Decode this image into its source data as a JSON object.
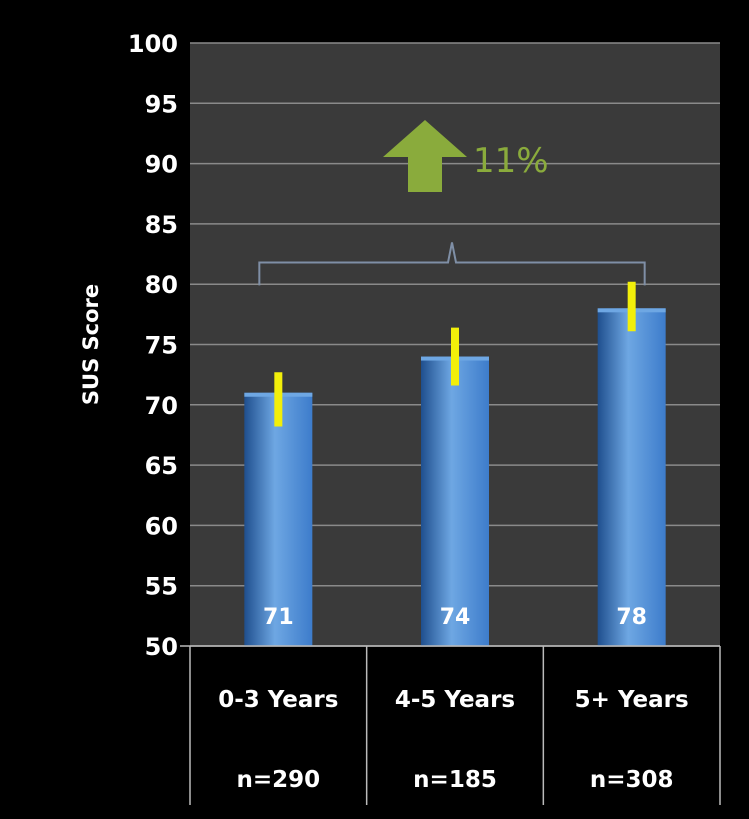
{
  "chart_data": {
    "type": "bar",
    "title": "",
    "ylabel": "SUS Score",
    "xlabel": "",
    "ylim": [
      50,
      100
    ],
    "yticks": [
      50,
      55,
      60,
      65,
      70,
      75,
      80,
      85,
      90,
      95,
      100
    ],
    "grid": true,
    "categories": [
      "0-3 Years",
      "4-5 Years",
      "5+ Years"
    ],
    "sample_sizes": [
      "n=290",
      "n=185",
      "n=308"
    ],
    "values": [
      71,
      74,
      78
    ],
    "error_bars": [
      {
        "low": 68.2,
        "high": 72.7
      },
      {
        "low": 71.6,
        "high": 76.4
      },
      {
        "low": 76.1,
        "high": 80.2
      }
    ],
    "annotation": {
      "text": "11%",
      "type": "up-arrow",
      "color": "#8aab3c"
    }
  },
  "colors": {
    "background": "#000000",
    "plot_area": "#3a3a3a",
    "gridline": "#8a8a8a",
    "bar_light": "#6ea7e3",
    "bar_mid": "#3d7ccb",
    "bar_dark": "#1f4f8e",
    "error_bar": "#f2ef0a",
    "bracket": "#7f8fa6",
    "axis_text": "#ffffff"
  }
}
